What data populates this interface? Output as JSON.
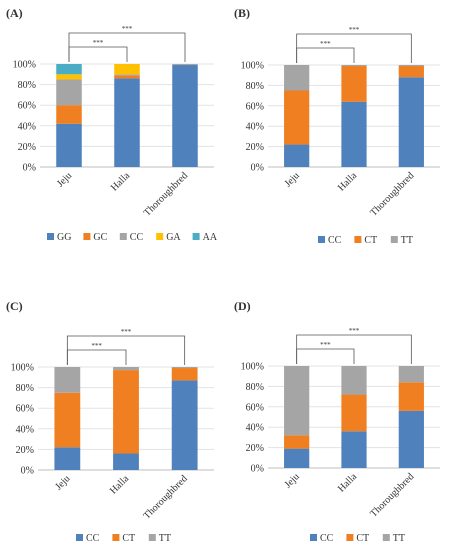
{
  "chart_data": [
    {
      "panel_label": "(A)",
      "type": "bar",
      "stacked": true,
      "categories": [
        "Jeju",
        "Halla",
        "Thoroughbred"
      ],
      "ylim": [
        0,
        100
      ],
      "yticks": [
        "0%",
        "20%",
        "40%",
        "60%",
        "80%",
        "100%"
      ],
      "series": [
        {
          "name": "GG",
          "color": "#4f81bd",
          "values": [
            42,
            86,
            99
          ]
        },
        {
          "name": "GC",
          "color": "#f07f21",
          "values": [
            18,
            3,
            0
          ]
        },
        {
          "name": "CC",
          "color": "#a5a5a5",
          "values": [
            25,
            1,
            1
          ]
        },
        {
          "name": "GA",
          "color": "#ffc000",
          "values": [
            5,
            10,
            0
          ]
        },
        {
          "name": "AA",
          "color": "#4bacc6",
          "values": [
            10,
            0,
            0
          ]
        }
      ],
      "significance": [
        {
          "from": "Jeju",
          "to": "Halla",
          "label": "***"
        },
        {
          "from": "Jeju",
          "to": "Thoroughbred",
          "label": "***"
        }
      ],
      "legend_position": "bottom"
    },
    {
      "panel_label": "(B)",
      "type": "bar",
      "stacked": true,
      "categories": [
        "Jeju",
        "Halla",
        "Thoroughbred"
      ],
      "ylim": [
        0,
        100
      ],
      "yticks": [
        "0%",
        "20%",
        "40%",
        "60%",
        "80%",
        "100%"
      ],
      "series": [
        {
          "name": "CC",
          "color": "#4f81bd",
          "values": [
            22,
            64,
            88
          ]
        },
        {
          "name": "CT",
          "color": "#f07f21",
          "values": [
            53,
            35,
            11
          ]
        },
        {
          "name": "TT",
          "color": "#a5a5a5",
          "values": [
            25,
            1,
            1
          ]
        }
      ],
      "significance": [
        {
          "from": "Jeju",
          "to": "Halla",
          "label": "***"
        },
        {
          "from": "Jeju",
          "to": "Thoroughbred",
          "label": "***"
        }
      ],
      "legend_position": "bottom"
    },
    {
      "panel_label": "(C)",
      "type": "bar",
      "stacked": true,
      "categories": [
        "Jeju",
        "Halla",
        "Thoroughbred"
      ],
      "ylim": [
        0,
        100
      ],
      "yticks": [
        "0%",
        "20%",
        "40%",
        "60%",
        "80%",
        "100%"
      ],
      "series": [
        {
          "name": "CC",
          "color": "#4f81bd",
          "values": [
            22,
            16,
            87
          ]
        },
        {
          "name": "CT",
          "color": "#f07f21",
          "values": [
            53,
            81,
            12
          ]
        },
        {
          "name": "TT",
          "color": "#a5a5a5",
          "values": [
            25,
            3,
            1
          ]
        }
      ],
      "significance": [
        {
          "from": "Jeju",
          "to": "Halla",
          "label": "***"
        },
        {
          "from": "Jeju",
          "to": "Thoroughbred",
          "label": "***"
        }
      ],
      "legend_position": "bottom"
    },
    {
      "panel_label": "(D)",
      "type": "bar",
      "stacked": true,
      "categories": [
        "Jeju",
        "Halla",
        "Thoroughbred"
      ],
      "ylim": [
        0,
        100
      ],
      "yticks": [
        "0%",
        "20%",
        "40%",
        "60%",
        "80%",
        "100%"
      ],
      "series": [
        {
          "name": "CC",
          "color": "#4f81bd",
          "values": [
            19,
            36,
            56
          ]
        },
        {
          "name": "CT",
          "color": "#f07f21",
          "values": [
            13,
            36,
            28
          ]
        },
        {
          "name": "TT",
          "color": "#a5a5a5",
          "values": [
            68,
            28,
            16
          ]
        }
      ],
      "significance": [
        {
          "from": "Jeju",
          "to": "Halla",
          "label": "***"
        },
        {
          "from": "Jeju",
          "to": "Thoroughbred",
          "label": "***"
        }
      ],
      "legend_position": "bottom"
    }
  ]
}
